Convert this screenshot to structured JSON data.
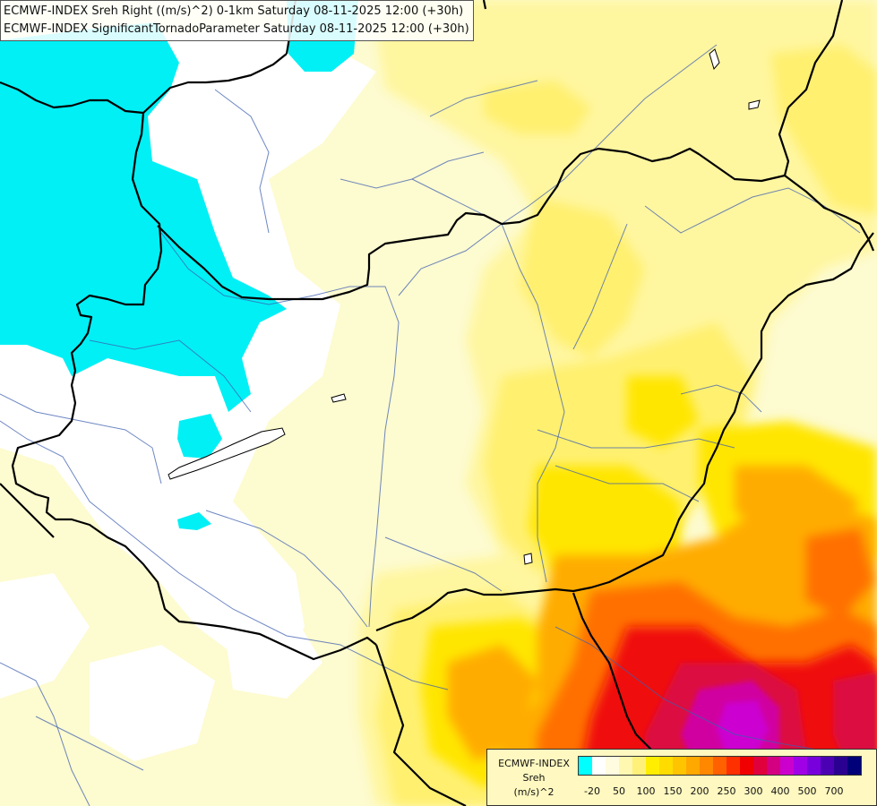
{
  "titles": {
    "line1": "ECMWF-INDEX Sreh Right ((m/s)^2) 0-1km Saturday 08-11-2025 12:00 (+30h)",
    "line2": "ECMWF-INDEX SignificantTornadoParameter Saturday 08-11-2025 12:00 (+30h)"
  },
  "legend": {
    "source": "ECMWF-INDEX",
    "variable": "Sreh",
    "unit": "(m/s)^2",
    "colors": [
      "#00ffff",
      "#ffffff",
      "#fffce0",
      "#fff8b0",
      "#fff07a",
      "#ffee00",
      "#ffdc00",
      "#ffc400",
      "#ffa800",
      "#ff8800",
      "#ff6000",
      "#ff3000",
      "#f00000",
      "#e0003c",
      "#d40082",
      "#cc00cc",
      "#a000e6",
      "#7800dc",
      "#4c00b4",
      "#2a0090",
      "#000078"
    ],
    "ticks": [
      {
        "label": "-20",
        "at": 1
      },
      {
        "label": "50",
        "at": 3
      },
      {
        "label": "100",
        "at": 5
      },
      {
        "label": "150",
        "at": 7
      },
      {
        "label": "200",
        "at": 9
      },
      {
        "label": "250",
        "at": 11
      },
      {
        "label": "300",
        "at": 13
      },
      {
        "label": "400",
        "at": 15
      },
      {
        "label": "500",
        "at": 17
      },
      {
        "label": "700",
        "at": 19
      }
    ]
  }
}
